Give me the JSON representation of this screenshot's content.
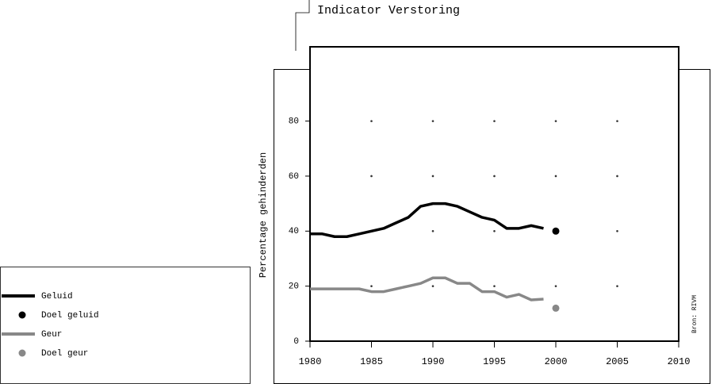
{
  "chart_data": {
    "type": "line",
    "title": "Indicator Verstoring",
    "y_label": "Percentage gehinderden",
    "source": "Bron: RIVM",
    "x": [
      1980,
      1981,
      1982,
      1983,
      1984,
      1985,
      1986,
      1987,
      1988,
      1989,
      1990,
      1991,
      1992,
      1993,
      1994,
      1995,
      1996,
      1997,
      1998,
      1999,
      2000
    ],
    "series": [
      {
        "name": "Geluid",
        "color": "#000000",
        "style": "line",
        "values": [
          39,
          39,
          38,
          38,
          39,
          40,
          41,
          43,
          45,
          49,
          50,
          50,
          49,
          47,
          45,
          44,
          41,
          41,
          42,
          41,
          null
        ]
      },
      {
        "name": "Doel geluid",
        "color": "#000000",
        "style": "point",
        "values": [
          null,
          null,
          null,
          null,
          null,
          null,
          null,
          null,
          null,
          null,
          null,
          null,
          null,
          null,
          null,
          null,
          null,
          null,
          null,
          null,
          40
        ]
      },
      {
        "name": "Geur",
        "color": "#888888",
        "style": "line",
        "values": [
          19,
          19,
          19,
          19,
          19,
          18,
          18,
          19,
          20,
          21,
          23,
          23,
          21,
          21,
          18,
          18,
          16,
          17,
          15,
          15.3,
          null
        ]
      },
      {
        "name": "Doel geur",
        "color": "#888888",
        "style": "point",
        "values": [
          null,
          null,
          null,
          null,
          null,
          null,
          null,
          null,
          null,
          null,
          null,
          null,
          null,
          null,
          null,
          null,
          null,
          null,
          null,
          null,
          12
        ]
      }
    ],
    "xlim": [
      1980,
      2010
    ],
    "xticks": [
      1980,
      1985,
      1990,
      1995,
      2000,
      2005,
      2010
    ],
    "ylim": [
      0,
      107
    ],
    "yticks": [
      0,
      20,
      40,
      60,
      80
    ],
    "grid": true
  }
}
